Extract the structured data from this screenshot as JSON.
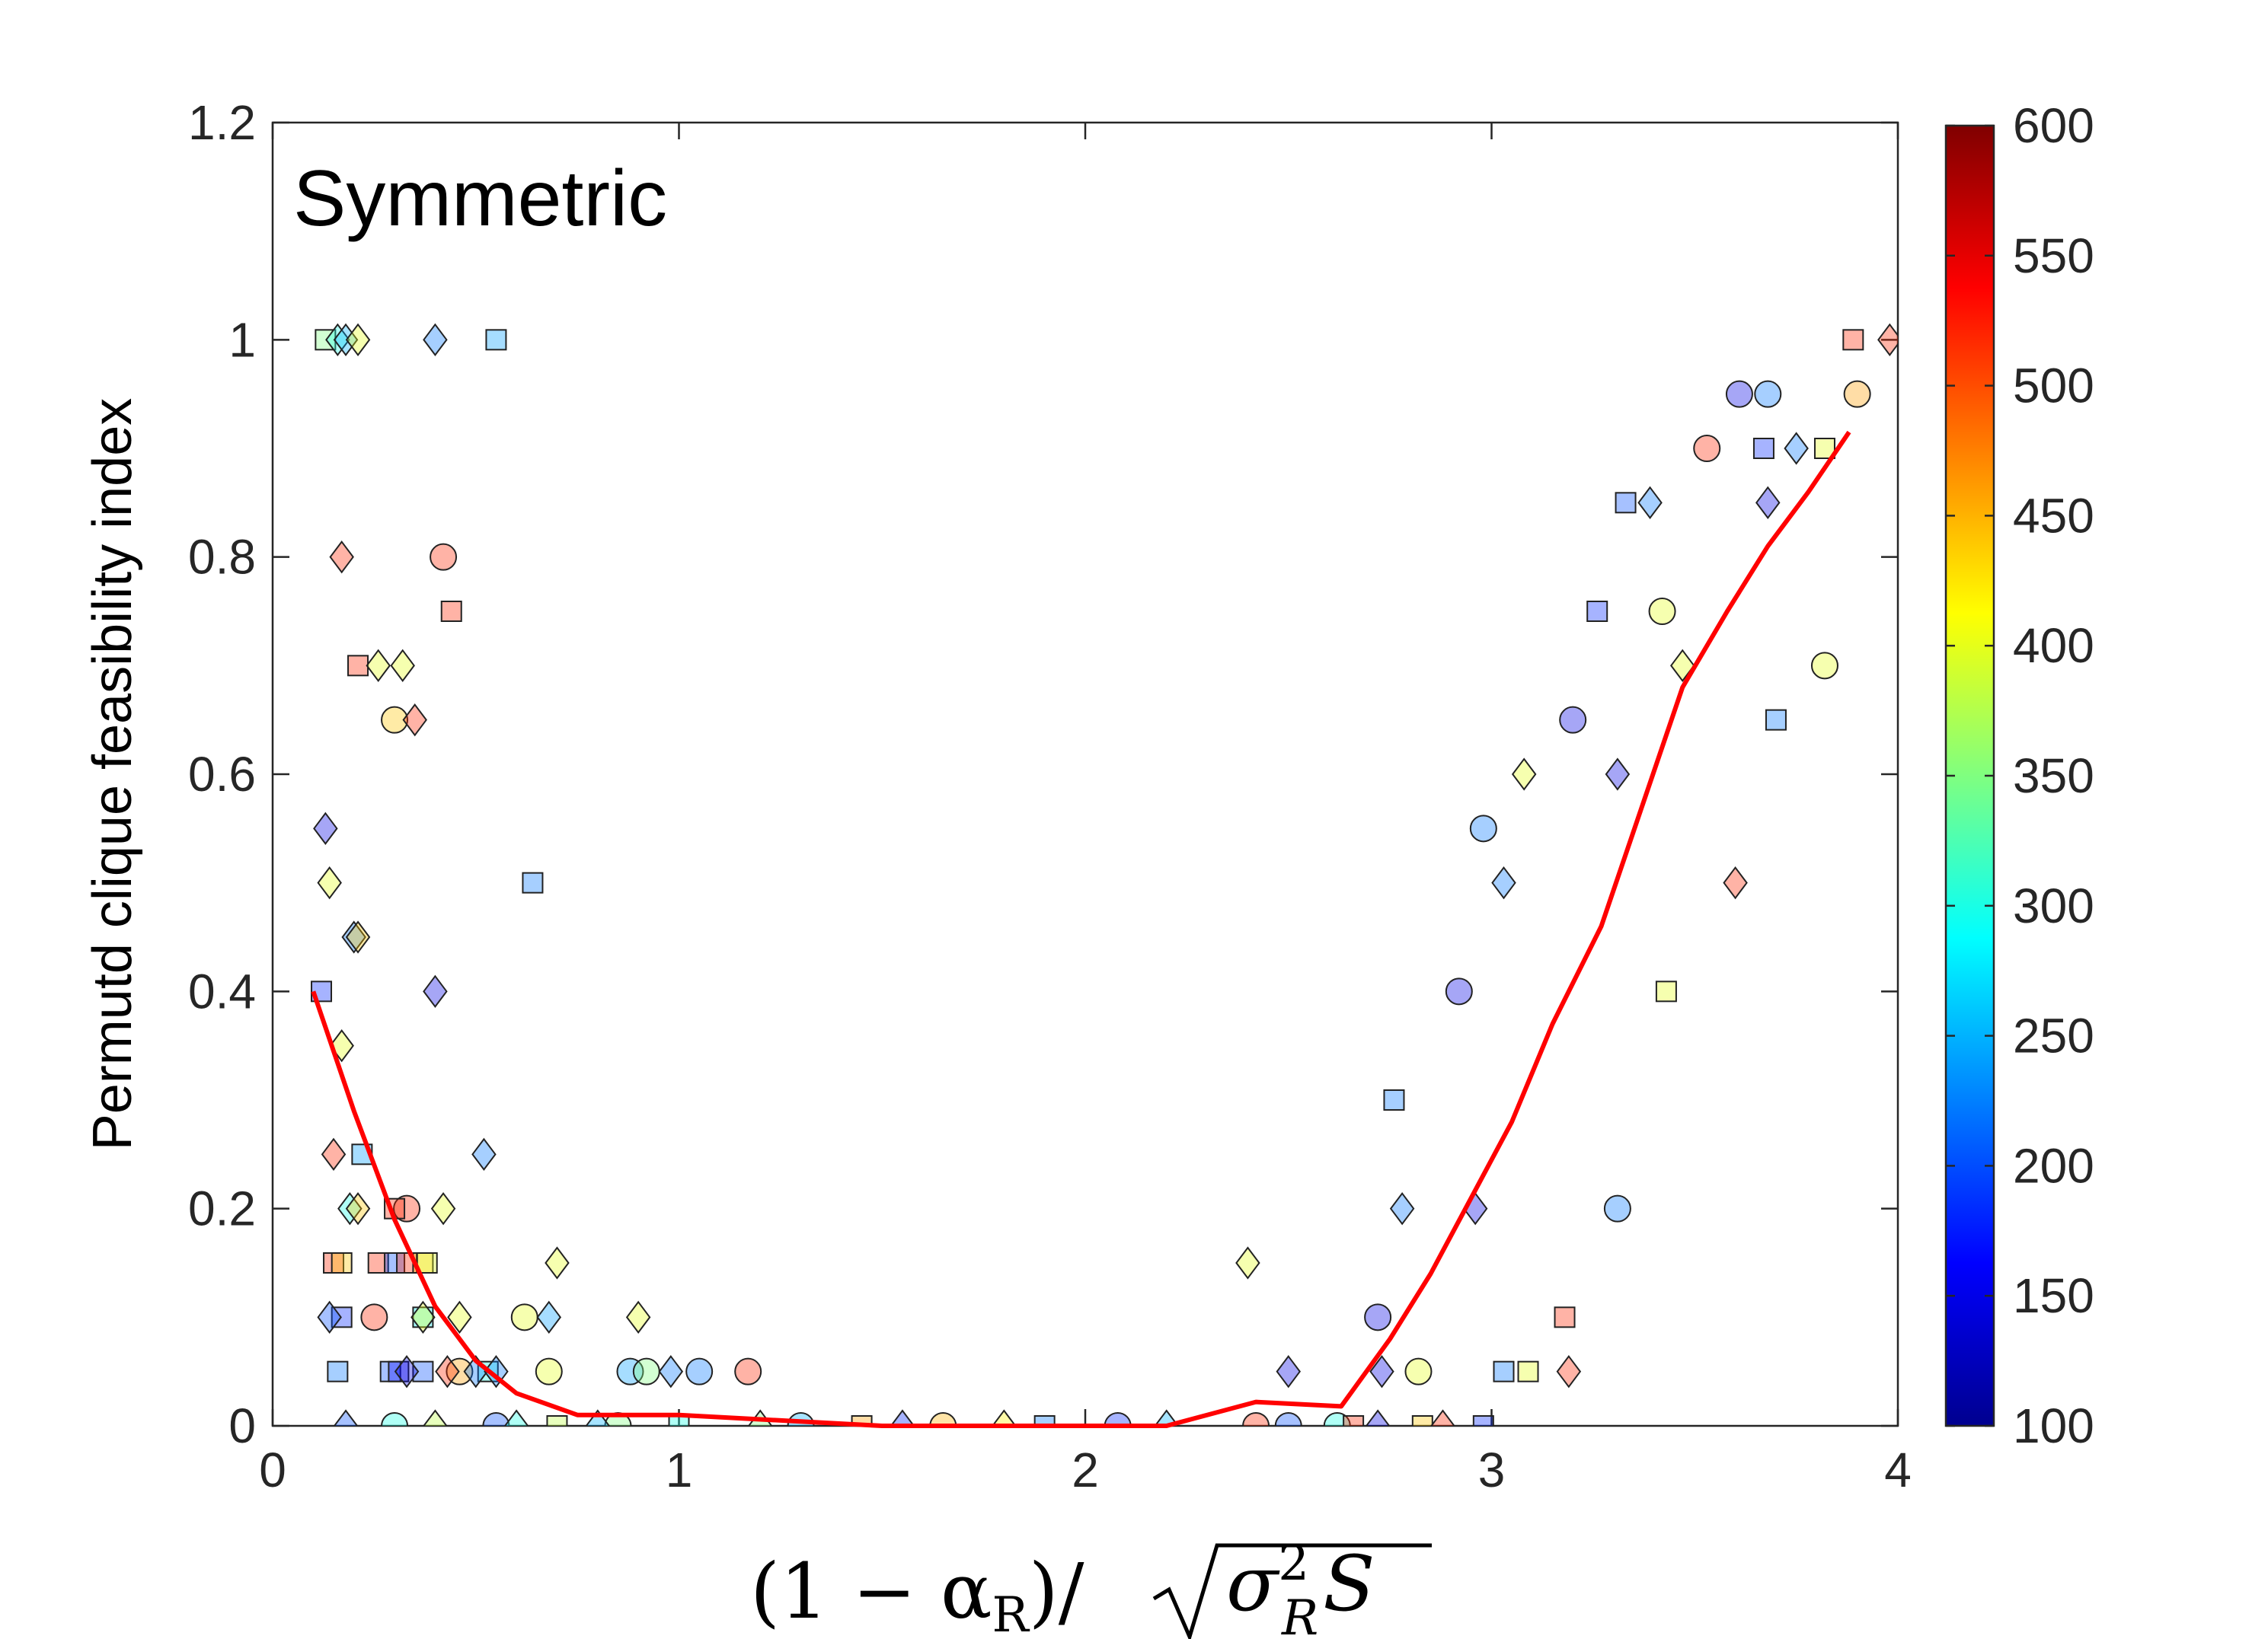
{
  "chart_data": {
    "type": "scatter",
    "title": "Symmetric",
    "ylabel": "Permutd clique feasibility index",
    "xlabel_parts": {
      "numerator": "(1 − α",
      "numerator_sub": "R",
      "close": ")/",
      "sigma": "σ",
      "sigma_sup": "2",
      "sigma_sub": "R",
      "S": "S"
    },
    "xlim": [
      0,
      4
    ],
    "ylim": [
      0,
      1.2
    ],
    "x_ticks": [
      0,
      1,
      2,
      3,
      4
    ],
    "x_tick_labels": [
      "0",
      "1",
      "2",
      "3",
      "4"
    ],
    "y_ticks": [
      0,
      0.2,
      0.4,
      0.6,
      0.8,
      1.0,
      1.2
    ],
    "y_tick_labels": [
      "0",
      "0.2",
      "0.4",
      "0.6",
      "0.8",
      "1",
      "1.2"
    ],
    "colorbar": {
      "range": [
        100,
        600
      ],
      "ticks": [
        100,
        150,
        200,
        250,
        300,
        350,
        400,
        450,
        500,
        550,
        600
      ],
      "tick_labels": [
        "100",
        "150",
        "200",
        "250",
        "300",
        "350",
        "400",
        "450",
        "500",
        "550",
        "600"
      ],
      "colormap": "jet"
    },
    "mean_line": {
      "color": "#ff0000",
      "x": [
        0.1,
        0.2,
        0.3,
        0.4,
        0.5,
        0.6,
        0.75,
        1.0,
        1.5,
        2.0,
        2.2,
        2.42,
        2.63,
        2.75,
        2.85,
        2.95,
        3.05,
        3.15,
        3.27,
        3.37,
        3.47,
        3.58,
        3.68,
        3.78,
        3.88
      ],
      "y": [
        0.4,
        0.29,
        0.19,
        0.11,
        0.06,
        0.03,
        0.01,
        0.01,
        0.0,
        0.0,
        0.0,
        0.022,
        0.018,
        0.08,
        0.14,
        0.21,
        0.28,
        0.37,
        0.46,
        0.57,
        0.68,
        0.75,
        0.81,
        0.86,
        0.915
      ]
    },
    "series": [
      {
        "name": "circles",
        "marker": "circle",
        "points": [
          [
            0.42,
            0.8,
            520
          ],
          [
            0.33,
            0.2,
            520
          ],
          [
            0.25,
            0.1,
            520
          ],
          [
            0.3,
            0.65,
            440
          ],
          [
            0.46,
            0.05,
            460
          ],
          [
            0.62,
            0.1,
            400
          ],
          [
            0.68,
            0.05,
            400
          ],
          [
            0.88,
            0.05,
            240
          ],
          [
            0.92,
            0.05,
            350
          ],
          [
            1.05,
            0.05,
            220
          ],
          [
            1.17,
            0.05,
            520
          ],
          [
            2.42,
            0.0,
            520
          ],
          [
            2.5,
            0.0,
            200
          ],
          [
            2.62,
            0.0,
            300
          ],
          [
            2.72,
            0.1,
            150
          ],
          [
            2.82,
            0.05,
            400
          ],
          [
            2.92,
            0.4,
            150
          ],
          [
            2.98,
            0.55,
            220
          ],
          [
            3.2,
            0.65,
            150
          ],
          [
            3.31,
            0.2,
            220
          ],
          [
            3.42,
            0.75,
            400
          ],
          [
            3.53,
            0.9,
            520
          ],
          [
            3.61,
            0.95,
            150
          ],
          [
            3.68,
            0.95,
            220
          ],
          [
            3.82,
            0.7,
            400
          ],
          [
            3.9,
            0.95,
            460
          ],
          [
            0.3,
            0.0,
            300
          ],
          [
            0.55,
            0.0,
            200
          ],
          [
            0.85,
            0.0,
            350
          ],
          [
            1.3,
            0.0,
            250
          ],
          [
            1.65,
            0.0,
            450
          ],
          [
            2.08,
            0.0,
            180
          ]
        ]
      },
      {
        "name": "squares",
        "marker": "square",
        "points": [
          [
            0.13,
            1.0,
            350
          ],
          [
            0.55,
            1.0,
            240
          ],
          [
            0.44,
            0.75,
            520
          ],
          [
            0.21,
            0.7,
            520
          ],
          [
            0.64,
            0.5,
            220
          ],
          [
            0.12,
            0.4,
            180
          ],
          [
            0.22,
            0.25,
            240
          ],
          [
            0.3,
            0.2,
            520
          ],
          [
            0.15,
            0.15,
            520
          ],
          [
            0.17,
            0.15,
            440
          ],
          [
            0.26,
            0.15,
            520
          ],
          [
            0.3,
            0.15,
            200
          ],
          [
            0.33,
            0.15,
            520
          ],
          [
            0.37,
            0.15,
            440
          ],
          [
            0.38,
            0.15,
            400
          ],
          [
            0.17,
            0.1,
            180
          ],
          [
            0.37,
            0.1,
            280
          ],
          [
            0.16,
            0.05,
            220
          ],
          [
            0.29,
            0.05,
            200
          ],
          [
            0.31,
            0.05,
            160
          ],
          [
            0.37,
            0.05,
            200
          ],
          [
            0.53,
            0.05,
            300
          ],
          [
            2.76,
            0.3,
            220
          ],
          [
            3.03,
            0.05,
            220
          ],
          [
            3.09,
            0.05,
            400
          ],
          [
            3.18,
            0.1,
            520
          ],
          [
            3.26,
            0.75,
            180
          ],
          [
            3.33,
            0.85,
            200
          ],
          [
            3.43,
            0.4,
            400
          ],
          [
            3.67,
            0.9,
            180
          ],
          [
            3.7,
            0.65,
            220
          ],
          [
            3.82,
            0.9,
            400
          ],
          [
            3.89,
            1.0,
            520
          ],
          [
            2.66,
            0.0,
            520
          ],
          [
            2.98,
            0.0,
            180
          ],
          [
            2.83,
            0.0,
            440
          ],
          [
            0.7,
            0.0,
            380
          ],
          [
            1.0,
            0.0,
            300
          ],
          [
            1.45,
            0.0,
            460
          ],
          [
            1.9,
            0.0,
            220
          ]
        ]
      },
      {
        "name": "diamonds",
        "marker": "diamond",
        "points": [
          [
            0.16,
            1.0,
            300
          ],
          [
            0.18,
            1.0,
            250
          ],
          [
            0.21,
            1.0,
            400
          ],
          [
            0.4,
            1.0,
            220
          ],
          [
            0.17,
            0.8,
            520
          ],
          [
            0.26,
            0.7,
            400
          ],
          [
            0.32,
            0.7,
            400
          ],
          [
            0.35,
            0.65,
            520
          ],
          [
            0.13,
            0.55,
            150
          ],
          [
            0.14,
            0.5,
            400
          ],
          [
            0.2,
            0.45,
            220
          ],
          [
            0.21,
            0.45,
            440
          ],
          [
            0.4,
            0.4,
            150
          ],
          [
            0.17,
            0.35,
            400
          ],
          [
            0.15,
            0.25,
            520
          ],
          [
            0.52,
            0.25,
            220
          ],
          [
            0.19,
            0.2,
            300
          ],
          [
            0.21,
            0.2,
            440
          ],
          [
            0.42,
            0.2,
            400
          ],
          [
            0.14,
            0.1,
            200
          ],
          [
            0.37,
            0.1,
            400
          ],
          [
            0.46,
            0.1,
            400
          ],
          [
            0.68,
            0.1,
            240
          ],
          [
            0.9,
            0.1,
            400
          ],
          [
            0.7,
            0.15,
            400
          ],
          [
            0.33,
            0.05,
            150
          ],
          [
            0.43,
            0.05,
            520
          ],
          [
            0.5,
            0.05,
            220
          ],
          [
            0.55,
            0.05,
            220
          ],
          [
            0.98,
            0.05,
            220
          ],
          [
            2.4,
            0.15,
            400
          ],
          [
            2.5,
            0.05,
            150
          ],
          [
            2.73,
            0.05,
            150
          ],
          [
            2.78,
            0.2,
            220
          ],
          [
            2.96,
            0.2,
            150
          ],
          [
            3.03,
            0.5,
            220
          ],
          [
            3.08,
            0.6,
            400
          ],
          [
            3.19,
            0.05,
            520
          ],
          [
            3.31,
            0.6,
            150
          ],
          [
            3.39,
            0.85,
            220
          ],
          [
            3.47,
            0.7,
            400
          ],
          [
            3.6,
            0.5,
            520
          ],
          [
            3.68,
            0.85,
            150
          ],
          [
            3.75,
            0.9,
            220
          ],
          [
            3.98,
            1.0,
            520
          ],
          [
            0.18,
            0.0,
            200
          ],
          [
            0.4,
            0.0,
            380
          ],
          [
            0.6,
            0.0,
            300
          ],
          [
            0.8,
            0.0,
            250
          ],
          [
            1.2,
            0.0,
            350
          ],
          [
            1.55,
            0.0,
            180
          ],
          [
            1.8,
            0.0,
            420
          ],
          [
            2.2,
            0.0,
            250
          ],
          [
            2.72,
            0.0,
            150
          ],
          [
            2.88,
            0.0,
            520
          ]
        ]
      }
    ]
  }
}
